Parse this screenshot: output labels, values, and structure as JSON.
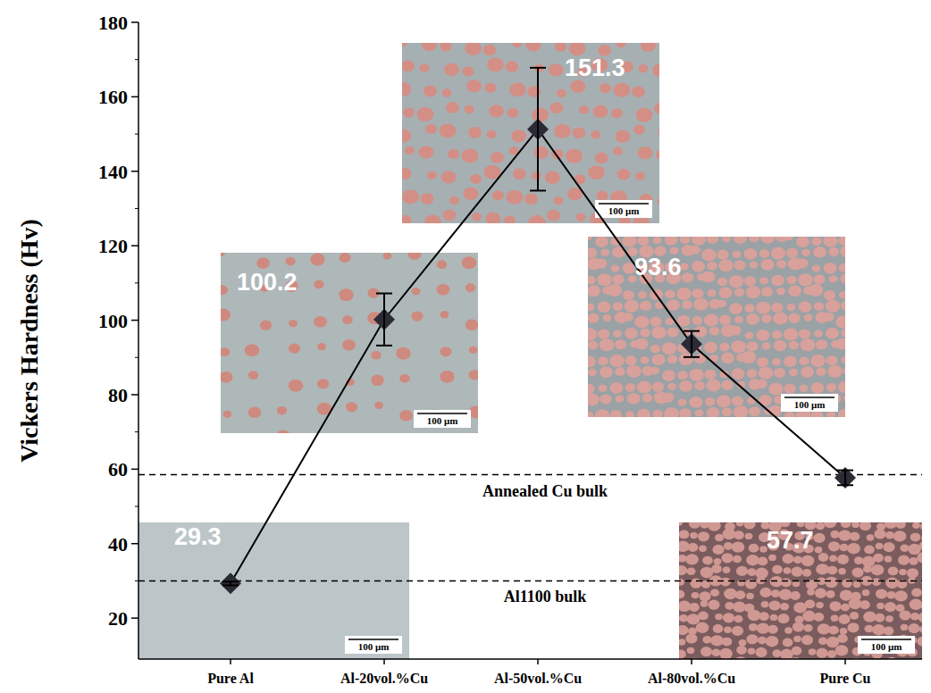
{
  "chart_data": {
    "type": "line",
    "y_label": "Vickers Hardness (Hv)",
    "categories": [
      "Pure Al",
      "Al-20vol.%Cu",
      "Al-50vol.%Cu",
      "Al-80vol.%Cu",
      "Pure Cu"
    ],
    "series": [
      {
        "values": [
          29.3,
          100.2,
          151.3,
          93.6,
          57.7
        ],
        "errors": [
          0.5,
          7,
          16.5,
          3.5,
          2
        ],
        "color": "#000000",
        "marker": "diamond"
      }
    ],
    "ylim": [
      9,
      180
    ],
    "yticks": [
      20,
      40,
      60,
      80,
      100,
      120,
      140,
      160,
      180
    ],
    "data_labels": true,
    "reference_lines": [
      {
        "value": 58.5,
        "label": "Annealed Cu bulk",
        "line_style": "dashed"
      },
      {
        "value": 30,
        "label": "Al1100 bulk",
        "line_style": "dashed"
      }
    ],
    "annotations": {
      "inset_scale_bar": "100 μm"
    }
  }
}
